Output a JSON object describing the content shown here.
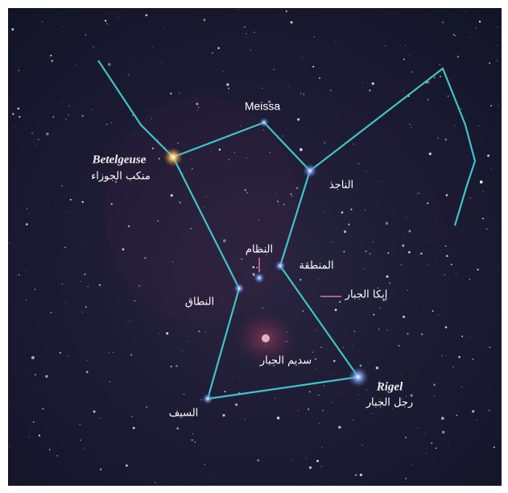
{
  "labels": [
    "Meissa",
    "Betelgeuse",
    "منكب الجوزاء",
    "الناجذ",
    "النظام",
    "المنطقة",
    "النطاق",
    "إبكا الجبار",
    "سديم الجبار",
    "Rigel",
    "رجل الجبار",
    "السيف"
  ]
}
